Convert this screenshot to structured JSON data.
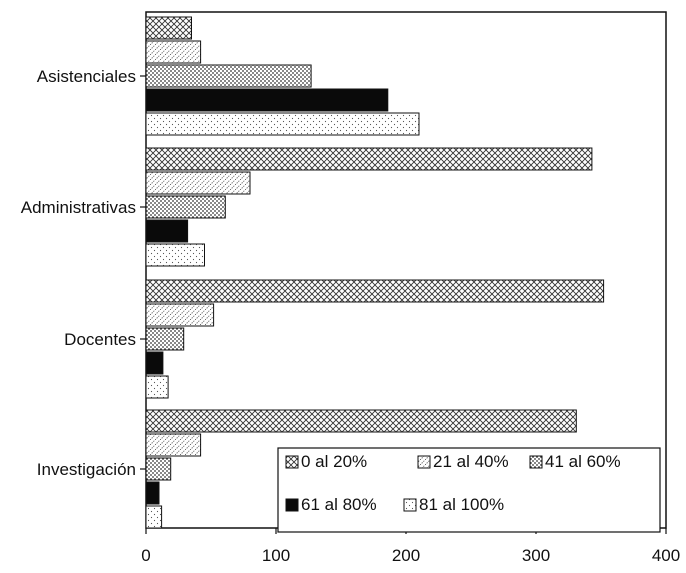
{
  "chart_data": {
    "type": "bar",
    "orientation": "horizontal",
    "categories": [
      "Asistenciales",
      "Administrativas",
      "Docentes",
      "Investigación"
    ],
    "series": [
      {
        "name": "0 al 20%",
        "values": [
          35,
          343,
          352,
          331
        ]
      },
      {
        "name": "21 al 40%",
        "values": [
          42,
          80,
          52,
          42
        ]
      },
      {
        "name": "41 al 60%",
        "values": [
          127,
          61,
          29,
          19
        ]
      },
      {
        "name": "61 al 80%",
        "values": [
          186,
          32,
          13,
          10
        ]
      },
      {
        "name": "81 al 100%",
        "values": [
          210,
          45,
          17,
          12
        ]
      }
    ],
    "x_ticks": [
      0,
      100,
      200,
      300,
      400
    ],
    "xlim": [
      0,
      400
    ],
    "grid": false,
    "legend_position": "bottom-right",
    "patterns": [
      "crosshatch",
      "diagonal-dots",
      "dense-dots",
      "solid-black",
      "sparse-dots"
    ]
  }
}
